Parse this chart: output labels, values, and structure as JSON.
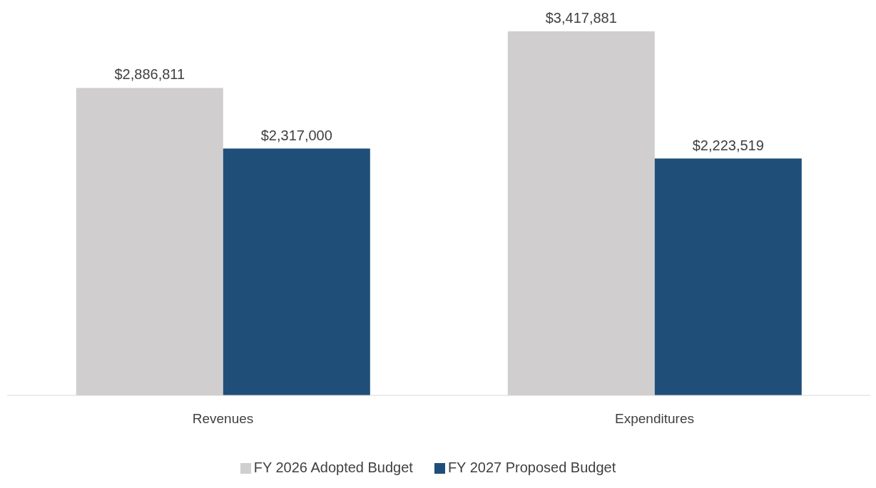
{
  "chart_data": {
    "type": "bar",
    "categories": [
      "Revenues",
      "Expenditures"
    ],
    "series": [
      {
        "name": "FY 2026 Adopted Budget",
        "color": "#d0cece",
        "values": [
          2886811,
          3417881
        ],
        "value_labels": [
          "$2,886,811",
          "$3,417,881"
        ]
      },
      {
        "name": "FY 2027 Proposed Budget",
        "color": "#1f4e79",
        "values": [
          2317000,
          2223519
        ],
        "value_labels": [
          "$2,317,000",
          "$2,223,519"
        ]
      }
    ],
    "legend": "bottom",
    "grid": false
  }
}
